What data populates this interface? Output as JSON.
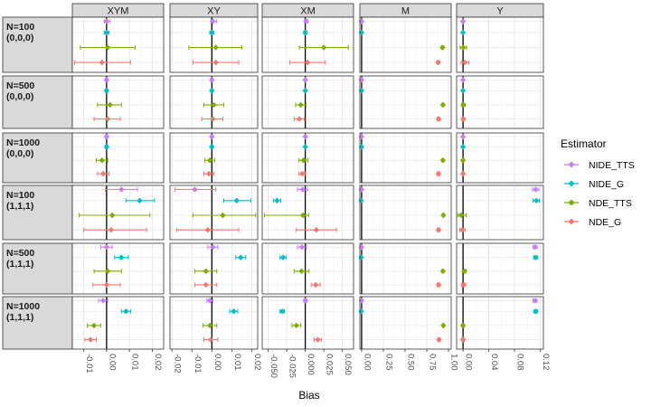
{
  "chart_data": {
    "type": "scatter",
    "subtype": "faceted point-range (estimate with interval)",
    "xlabel": "Bias",
    "columns": [
      {
        "name": "XYM",
        "xlim": [
          -0.015,
          0.025
        ],
        "ticks": [
          -0.01,
          0.0,
          0.01,
          0.02
        ],
        "tick_labels": [
          "-0.01",
          "0.00",
          "0.01",
          "0.02"
        ]
      },
      {
        "name": "XY",
        "xlim": [
          -0.021,
          0.023
        ],
        "ticks": [
          -0.02,
          -0.01,
          0.0,
          0.01,
          0.02
        ],
        "tick_labels": [
          "-0.02",
          "-0.01",
          "0.00",
          "0.01",
          "0.02"
        ]
      },
      {
        "name": "XM",
        "xlim": [
          -0.058,
          0.065
        ],
        "ticks": [
          -0.05,
          -0.025,
          0.0,
          0.025,
          0.05
        ],
        "tick_labels": [
          "-0.050",
          "-0.025",
          "0.000",
          "0.025",
          "0.050"
        ]
      },
      {
        "name": "M",
        "xlim": [
          -0.02,
          1.03
        ],
        "ticks": [
          0.0,
          0.25,
          0.5,
          0.75,
          1.0
        ],
        "tick_labels": [
          "0.00",
          "0.25",
          "0.50",
          "0.75",
          "1.00"
        ]
      },
      {
        "name": "Y",
        "xlim": [
          -0.01,
          0.125
        ],
        "ticks": [
          0.0,
          0.04,
          0.08,
          0.12
        ],
        "tick_labels": [
          "0.00",
          "0.04",
          "0.08",
          "0.12"
        ]
      }
    ],
    "rows": [
      {
        "label": [
          "N=100",
          "(0,0,0)"
        ]
      },
      {
        "label": [
          "N=500",
          "(0,0,0)"
        ]
      },
      {
        "label": [
          "N=1000",
          "(0,0,0)"
        ]
      },
      {
        "label": [
          "N=100",
          "(1,1,1)"
        ]
      },
      {
        "label": [
          "N=500",
          "(1,1,1)"
        ]
      },
      {
        "label": [
          "N=1000",
          "(1,1,1)"
        ]
      }
    ],
    "series": [
      {
        "name": "NIDE_TTS",
        "color": "#C77CFF"
      },
      {
        "name": "NIDE_G",
        "color": "#00BFC4"
      },
      {
        "name": "NDE_TTS",
        "color": "#7CAE00"
      },
      {
        "name": "NDE_G",
        "color": "#F8766D"
      }
    ],
    "legend": {
      "title": "Estimator",
      "position": "right"
    },
    "data": [
      [
        [
          [
            0.0,
            -0.001,
            0.0015
          ],
          [
            0.0,
            -0.001,
            0.001
          ],
          [
            0.0005,
            -0.0115,
            0.0125
          ],
          [
            -0.002,
            -0.014,
            0.0105
          ]
        ],
        [
          [
            0.0005,
            -0.0005,
            0.0025
          ],
          [
            0.0,
            -0.001,
            0.001
          ],
          [
            0.002,
            -0.0115,
            0.015
          ],
          [
            0.002,
            -0.0095,
            0.0135
          ]
        ],
        [
          [
            0.001,
            -0.001,
            0.0035
          ],
          [
            0.0,
            -0.002,
            0.002
          ],
          [
            0.025,
            -0.008,
            0.058
          ],
          [
            0.003,
            -0.021,
            0.027
          ]
        ],
        [
          [
            0.0,
            -0.005,
            0.005
          ],
          [
            0.0,
            -0.005,
            0.005
          ],
          [
            0.93,
            0.92,
            0.945
          ],
          [
            0.88,
            0.865,
            0.895
          ]
        ],
        [
          [
            0.0,
            -0.001,
            0.001
          ],
          [
            0.0,
            -0.001,
            0.001
          ],
          [
            0.0005,
            -0.0045,
            0.0055
          ],
          [
            0.003,
            -0.003,
            0.009
          ]
        ]
      ],
      [
        [
          [
            0.0,
            -0.0005,
            0.0005
          ],
          [
            0.0,
            -0.0005,
            0.0005
          ],
          [
            0.0015,
            -0.004,
            0.0065
          ],
          [
            0.0005,
            -0.0055,
            0.006
          ]
        ],
        [
          [
            0.0,
            -0.0005,
            0.0005
          ],
          [
            0.0,
            -0.0005,
            0.0005
          ],
          [
            0.001,
            -0.004,
            0.006
          ],
          [
            0.0005,
            -0.005,
            0.0055
          ]
        ],
        [
          [
            0.0,
            -0.0005,
            0.0005
          ],
          [
            0.0,
            -0.0005,
            0.0005
          ],
          [
            -0.006,
            -0.013,
            0.001
          ],
          [
            -0.008,
            -0.015,
            -0.001
          ]
        ],
        [
          [
            0.0,
            -0.005,
            0.005
          ],
          [
            0.0,
            -0.005,
            0.005
          ],
          [
            0.935,
            0.925,
            0.945
          ],
          [
            0.885,
            0.87,
            0.9
          ]
        ],
        [
          [
            0.0,
            -0.0005,
            0.0005
          ],
          [
            0.0,
            -0.0005,
            0.0005
          ],
          [
            0.0005,
            -0.002,
            0.003
          ],
          [
            0.0005,
            -0.0015,
            0.0025
          ]
        ]
      ],
      [
        [
          [
            0.0,
            -0.0005,
            0.0005
          ],
          [
            0.0,
            -0.0005,
            0.0005
          ],
          [
            -0.002,
            -0.0045,
            0.0005
          ],
          [
            -0.0015,
            -0.004,
            0.001
          ]
        ],
        [
          [
            0.0,
            -0.0005,
            0.0005
          ],
          [
            0.0,
            -0.0005,
            0.0005
          ],
          [
            -0.001,
            -0.0035,
            0.0015
          ],
          [
            -0.0015,
            -0.004,
            0.001
          ]
        ],
        [
          [
            0.0,
            -0.0005,
            0.0005
          ],
          [
            0.0,
            -0.0005,
            0.0005
          ],
          [
            -0.0025,
            -0.0085,
            0.0035
          ],
          [
            -0.004,
            -0.0085,
            0.0005
          ]
        ],
        [
          [
            0.0,
            -0.005,
            0.005
          ],
          [
            0.0,
            -0.005,
            0.005
          ],
          [
            0.935,
            0.925,
            0.945
          ],
          [
            0.885,
            0.87,
            0.9
          ]
        ],
        [
          [
            0.0,
            -0.0005,
            0.0005
          ],
          [
            0.0,
            -0.0005,
            0.0005
          ],
          [
            0.0,
            -0.0015,
            0.0015
          ],
          [
            0.0,
            -0.0015,
            0.0015
          ]
        ]
      ],
      [
        [
          [
            0.0065,
            -0.0005,
            0.0135
          ],
          [
            0.0145,
            0.0085,
            0.021
          ],
          [
            0.0025,
            -0.012,
            0.019
          ],
          [
            0.002,
            -0.01,
            0.0175
          ]
        ],
        [
          [
            -0.0085,
            -0.0185,
            0.002
          ],
          [
            0.0125,
            0.006,
            0.0195
          ],
          [
            0.0055,
            -0.0095,
            0.022
          ],
          [
            -0.002,
            -0.0175,
            0.0135
          ]
        ],
        [
          [
            -0.0035,
            -0.0105,
            0.003
          ],
          [
            -0.038,
            -0.043,
            -0.033
          ],
          [
            -0.003,
            -0.055,
            0.0045
          ],
          [
            0.015,
            -0.012,
            0.042
          ]
        ],
        [
          [
            0.0,
            -0.005,
            0.005
          ],
          [
            -0.005,
            -0.01,
            0.0
          ],
          [
            0.94,
            0.93,
            0.95
          ],
          [
            0.885,
            0.87,
            0.9
          ]
        ],
        [
          [
            0.113,
            0.108,
            0.118
          ],
          [
            0.114,
            0.109,
            0.119
          ],
          [
            -0.003,
            -0.008,
            0.005
          ],
          [
            -0.001,
            -0.005,
            0.003
          ]
        ]
      ],
      [
        [
          [
            0.0,
            -0.0025,
            0.0025
          ],
          [
            0.0065,
            0.0035,
            0.0095
          ],
          [
            0.0005,
            -0.0055,
            0.0065
          ],
          [
            0.0,
            -0.006,
            0.006
          ]
        ],
        [
          [
            0.0005,
            -0.002,
            0.003
          ],
          [
            0.0145,
            0.012,
            0.017
          ],
          [
            -0.003,
            -0.0085,
            0.0025
          ],
          [
            -0.003,
            -0.0085,
            0.0025
          ]
        ],
        [
          [
            -0.0045,
            -0.0105,
            0.0015
          ],
          [
            -0.03,
            -0.034,
            -0.026
          ],
          [
            -0.005,
            -0.015,
            0.005
          ],
          [
            0.014,
            0.008,
            0.02
          ]
        ],
        [
          [
            0.0,
            -0.005,
            0.005
          ],
          [
            -0.005,
            -0.01,
            0.0
          ],
          [
            0.935,
            0.925,
            0.945
          ],
          [
            0.885,
            0.87,
            0.9
          ]
        ],
        [
          [
            0.112,
            0.109,
            0.115
          ],
          [
            0.113,
            0.11,
            0.116
          ],
          [
            0.002,
            -0.001,
            0.005
          ],
          [
            0.001,
            -0.002,
            0.004
          ]
        ]
      ],
      [
        [
          [
            -0.0015,
            -0.0035,
            0.0005
          ],
          [
            0.0085,
            0.0065,
            0.0105
          ],
          [
            -0.0055,
            -0.0085,
            -0.0025
          ],
          [
            -0.007,
            -0.0095,
            -0.0045
          ]
        ],
        [
          [
            -0.001,
            -0.0025,
            0.0005
          ],
          [
            0.011,
            0.009,
            0.013
          ],
          [
            -0.001,
            -0.0045,
            0.0025
          ],
          [
            -0.0005,
            -0.004,
            0.003
          ]
        ],
        [
          [
            0.0,
            -0.002,
            0.002
          ],
          [
            -0.031,
            -0.034,
            -0.028
          ],
          [
            -0.012,
            -0.018,
            -0.006
          ],
          [
            0.017,
            0.012,
            0.022
          ]
        ],
        [
          [
            0.0,
            -0.005,
            0.005
          ],
          [
            -0.005,
            -0.01,
            0.0
          ],
          [
            0.94,
            0.93,
            0.95
          ],
          [
            0.89,
            0.875,
            0.905
          ]
        ],
        [
          [
            0.112,
            0.109,
            0.115
          ],
          [
            0.113,
            0.11,
            0.116
          ],
          [
            0.0,
            -0.002,
            0.002
          ],
          [
            0.0,
            -0.002,
            0.002
          ]
        ]
      ]
    ]
  }
}
